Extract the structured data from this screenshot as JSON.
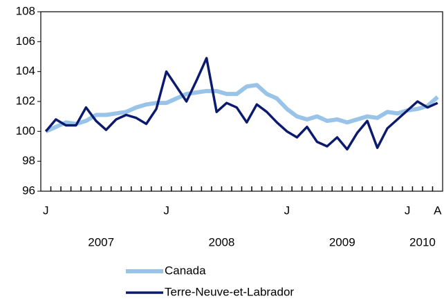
{
  "chart_data": {
    "type": "line",
    "categories": [
      "J",
      null,
      null,
      null,
      null,
      null,
      null,
      null,
      null,
      null,
      null,
      null,
      "J",
      null,
      null,
      null,
      null,
      null,
      null,
      null,
      null,
      null,
      null,
      null,
      "J",
      null,
      null,
      null,
      null,
      null,
      null,
      null,
      null,
      null,
      null,
      null,
      "J",
      null,
      null,
      "A"
    ],
    "groups": [
      {
        "label": "2007",
        "start": 0,
        "end": 11
      },
      {
        "label": "2008",
        "start": 12,
        "end": 23
      },
      {
        "label": "2009",
        "start": 24,
        "end": 35
      },
      {
        "label": "2010",
        "start": 36,
        "end": 39
      }
    ],
    "series": [
      {
        "name": "Canada",
        "color": "#99c4e8",
        "values": [
          100.0,
          100.3,
          100.6,
          100.5,
          100.7,
          101.1,
          101.1,
          101.2,
          101.3,
          101.6,
          101.8,
          101.9,
          101.9,
          102.2,
          102.5,
          102.6,
          102.7,
          102.7,
          102.5,
          102.5,
          103.0,
          103.1,
          102.5,
          102.2,
          101.5,
          101.0,
          100.8,
          101.0,
          100.7,
          100.8,
          100.6,
          100.8,
          101.0,
          100.9,
          101.3,
          101.2,
          101.4,
          101.5,
          101.7,
          102.3
        ]
      },
      {
        "name": "Terre-Neuve-et-Labrador",
        "color": "#0c1a6e",
        "values": [
          100.0,
          100.8,
          100.4,
          100.4,
          101.6,
          100.7,
          100.1,
          100.8,
          101.1,
          100.9,
          100.5,
          101.5,
          104.0,
          103.0,
          102.0,
          103.4,
          104.9,
          101.3,
          101.9,
          101.6,
          100.6,
          101.8,
          101.3,
          100.6,
          100.0,
          99.6,
          100.3,
          99.3,
          99.0,
          99.6,
          98.8,
          99.9,
          100.7,
          98.9,
          100.2,
          100.8,
          101.4,
          102.0,
          101.6,
          101.9
        ]
      }
    ],
    "ylim": [
      96,
      108
    ],
    "yticks": [
      96,
      98,
      100,
      102,
      104,
      106,
      108
    ],
    "grid": false
  }
}
